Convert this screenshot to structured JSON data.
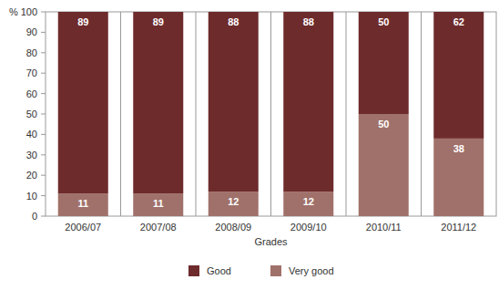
{
  "chart_data": {
    "type": "bar",
    "stacked": true,
    "data_labels": true,
    "legend": "bottom",
    "x_label": "Grades",
    "y_label": "%",
    "categories": [
      "2006/07",
      "2007/08",
      "2008/09",
      "2009/10",
      "2010/11",
      "2011/12"
    ],
    "series": [
      {
        "name": "Good",
        "color": "#6e2b2c",
        "values": [
          89,
          89,
          88,
          88,
          50,
          62
        ]
      },
      {
        "name": "Very good",
        "color": "#a0716a",
        "values": [
          11,
          11,
          12,
          12,
          50,
          38
        ]
      }
    ],
    "ylim": [
      0,
      100
    ],
    "yticks": [
      0,
      10,
      20,
      30,
      40,
      50,
      60,
      70,
      80,
      90,
      100
    ]
  }
}
